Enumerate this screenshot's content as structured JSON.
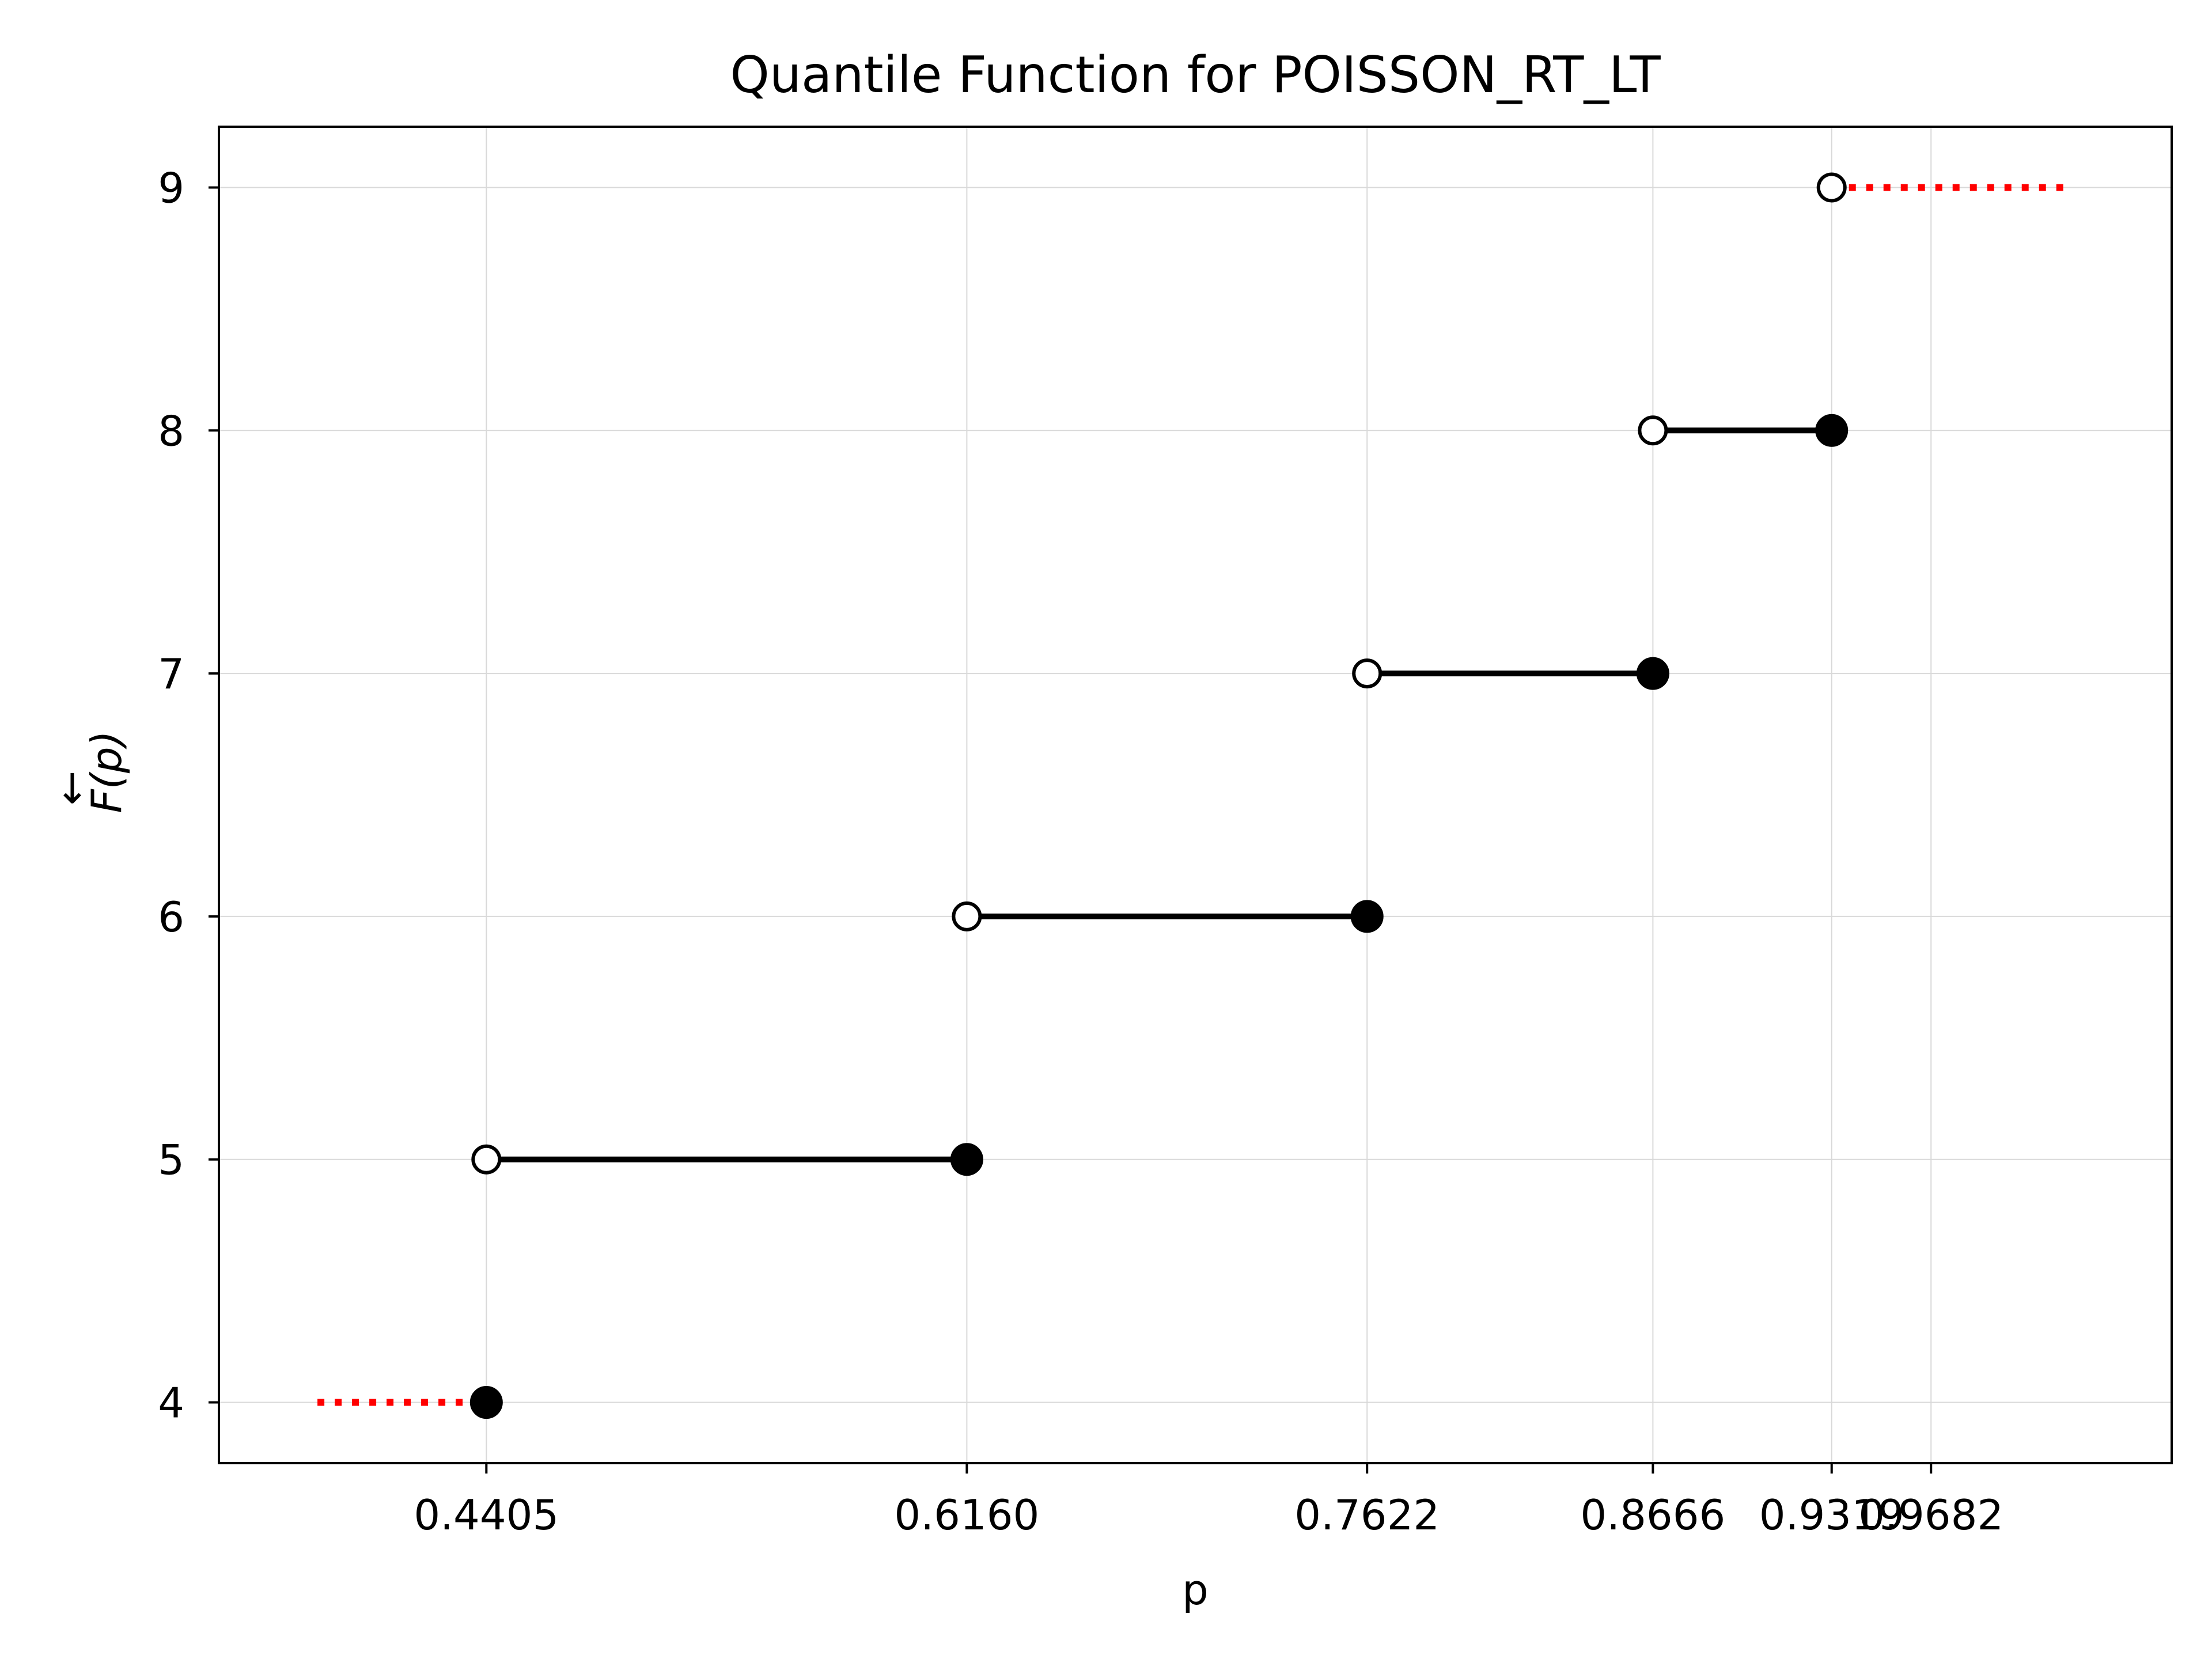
{
  "chart_data": {
    "type": "line",
    "title": "Quantile Function for POISSON_RT_LT",
    "xlabel": "p",
    "ylabel": "F(p)",
    "ylabel_arrow": "←",
    "xlim": [
      0.3428,
      1.0561
    ],
    "ylim": [
      3.75,
      9.25
    ],
    "x_ticks": [
      0.4405,
      0.616,
      0.7622,
      0.8666,
      0.9319,
      0.9682
    ],
    "x_tick_labels": [
      "0.4405",
      "0.6160",
      "0.7622",
      "0.8666",
      "0.9319",
      "0.9682"
    ],
    "y_ticks": [
      4,
      5,
      6,
      7,
      8,
      9
    ],
    "y_tick_labels": [
      "4",
      "5",
      "6",
      "7",
      "8",
      "9"
    ],
    "grid": true,
    "steps": [
      {
        "y": 5,
        "x_start": 0.4405,
        "x_end": 0.616
      },
      {
        "y": 6,
        "x_start": 0.616,
        "x_end": 0.7622
      },
      {
        "y": 7,
        "x_start": 0.7622,
        "x_end": 0.8666
      },
      {
        "y": 8,
        "x_start": 0.8666,
        "x_end": 0.9319
      }
    ],
    "closed_points": [
      {
        "x": 0.4405,
        "y": 4
      },
      {
        "x": 0.616,
        "y": 5
      },
      {
        "x": 0.7622,
        "y": 6
      },
      {
        "x": 0.8666,
        "y": 7
      },
      {
        "x": 0.9319,
        "y": 8
      }
    ],
    "open_points": [
      {
        "x": 0.4405,
        "y": 5
      },
      {
        "x": 0.616,
        "y": 6
      },
      {
        "x": 0.7622,
        "y": 7
      },
      {
        "x": 0.8666,
        "y": 8
      },
      {
        "x": 0.9319,
        "y": 9
      }
    ],
    "tails": [
      {
        "x_start": 0.3788,
        "x_end": 0.4405,
        "y": 4
      },
      {
        "x_start": 0.9319,
        "x_end": 1.0201,
        "y": 9
      }
    ],
    "colors": {
      "step": "#000000",
      "tail": "#ff0000",
      "grid": "#d9d9d9",
      "open_fill": "#ffffff"
    }
  }
}
